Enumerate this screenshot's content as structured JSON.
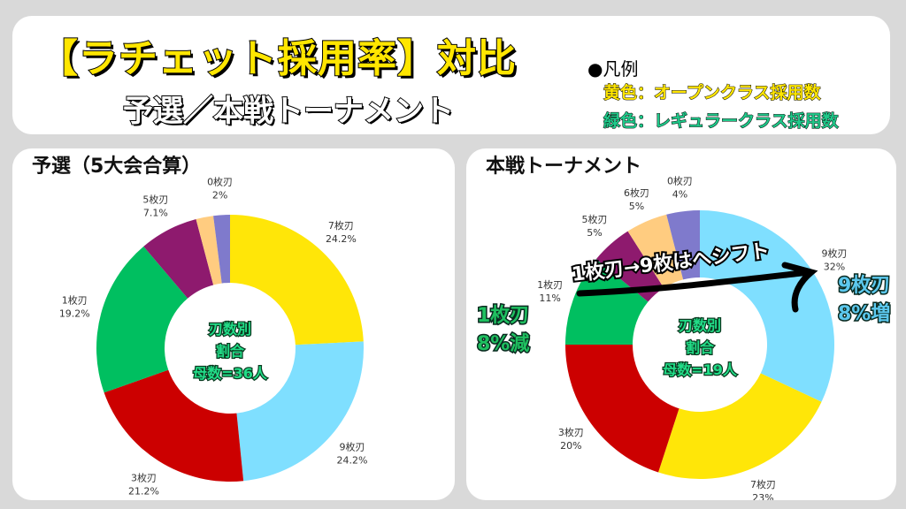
{
  "header": {
    "title": "【ラチェット採用率】対比",
    "subtitle": "予選／本戦トーナメント",
    "legend_heading": "●凡例",
    "legend_yellow": "黄色：オープンクラス採用数",
    "legend_green": "緑色：レギュラークラス採用数",
    "legend_yellow_color": "#ffe600",
    "legend_green_color": "#1fc98a"
  },
  "chart_data": [
    {
      "type": "pie",
      "donut": true,
      "title": "予選（5大会合算）",
      "center_text": [
        "刃数別",
        "割合",
        "母数=36人"
      ],
      "slices": [
        {
          "label": "7枚刃",
          "value": 24.2,
          "value_label": "24.2%",
          "color": "#ffe608"
        },
        {
          "label": "9枚刃",
          "value": 24.2,
          "value_label": "24.2%",
          "color": "#7fdfff"
        },
        {
          "label": "3枚刃",
          "value": 21.2,
          "value_label": "21.2%",
          "color": "#cc0000"
        },
        {
          "label": "1枚刃",
          "value": 19.2,
          "value_label": "19.2%",
          "color": "#00bf60"
        },
        {
          "label": "5枚刃",
          "value": 7.1,
          "value_label": "7.1%",
          "color": "#8e1a6e"
        },
        {
          "label": "",
          "value": 2.1,
          "value_label": "",
          "color": "#ffcc80"
        },
        {
          "label": "0枚刃",
          "value": 2,
          "value_label": "2%",
          "color": "#7f7acc"
        }
      ]
    },
    {
      "type": "pie",
      "donut": true,
      "title": "本戦トーナメント",
      "center_text": [
        "刃数別",
        "割合",
        "母数=19人"
      ],
      "slices": [
        {
          "label": "9枚刃",
          "value": 32,
          "value_label": "32%",
          "color": "#7fdfff"
        },
        {
          "label": "7枚刃",
          "value": 23,
          "value_label": "23%",
          "color": "#ffe608"
        },
        {
          "label": "3枚刃",
          "value": 20,
          "value_label": "20%",
          "color": "#cc0000"
        },
        {
          "label": "1枚刃",
          "value": 11,
          "value_label": "11%",
          "color": "#00bf60"
        },
        {
          "label": "5枚刃",
          "value": 5,
          "value_label": "5%",
          "color": "#8e1a6e"
        },
        {
          "label": "6枚刃",
          "value": 5,
          "value_label": "5%",
          "color": "#ffcc80"
        },
        {
          "label": "0枚刃",
          "value": 4,
          "value_label": "4%",
          "color": "#7f7acc"
        }
      ],
      "annotations": {
        "shift": "1枚刃→9枚はへシフト",
        "decrease": [
          "1枚刃",
          "8%減"
        ],
        "increase": [
          "9枚刃",
          "8%増"
        ],
        "decrease_color": "#1fc060",
        "increase_color": "#5cc8ee"
      }
    }
  ]
}
